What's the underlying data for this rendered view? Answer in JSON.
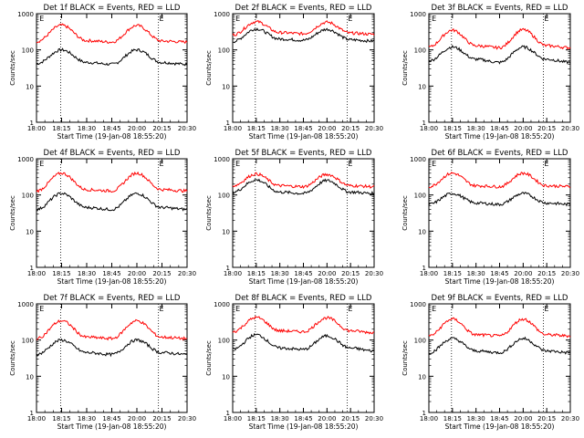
{
  "shared": {
    "ylabel": "Counts/sec",
    "xlabel": "Start Time (19-Jan-08 18:55:20)",
    "x_ticks": [
      "18:00",
      "18:15",
      "18:30",
      "18:45",
      "20:00",
      "20:15",
      "20:30"
    ],
    "y_ticks": [
      "1",
      "10",
      "100",
      "1000"
    ],
    "e_marker": "E",
    "colors": {
      "events": "#000000",
      "lld": "#ff0000",
      "axes": "#000000"
    }
  },
  "chart_data": [
    {
      "type": "line",
      "title": "Det 1f BLACK = Events, RED = LLD",
      "xlabel": "Start Time (19-Jan-08 18:55:20)",
      "ylabel": "Counts/sec",
      "categories": [
        "18:00",
        "18:15",
        "18:30",
        "18:45",
        "20:00",
        "20:15",
        "20:30"
      ],
      "y_scale": "log",
      "ylim": [
        1,
        1000
      ],
      "series": [
        {
          "name": "Events",
          "color": "#000000",
          "values": [
            42,
            100,
            45,
            40,
            100,
            45,
            40
          ]
        },
        {
          "name": "LLD",
          "color": "#ff0000",
          "values": [
            170,
            480,
            180,
            165,
            470,
            175,
            165
          ]
        }
      ]
    },
    {
      "type": "line",
      "title": "Det 2f BLACK = Events, RED = LLD",
      "xlabel": "Start Time (19-Jan-08 18:55:20)",
      "ylabel": "Counts/sec",
      "categories": [
        "18:00",
        "18:15",
        "18:30",
        "18:45",
        "20:00",
        "20:15",
        "20:30"
      ],
      "y_scale": "log",
      "ylim": [
        1,
        1000
      ],
      "series": [
        {
          "name": "Events",
          "color": "#000000",
          "values": [
            170,
            380,
            200,
            185,
            370,
            190,
            175
          ]
        },
        {
          "name": "LLD",
          "color": "#ff0000",
          "values": [
            260,
            600,
            300,
            280,
            580,
            290,
            270
          ]
        }
      ]
    },
    {
      "type": "line",
      "title": "Det 3f BLACK = Events, RED = LLD",
      "xlabel": "Start Time (19-Jan-08 18:55:20)",
      "ylabel": "Counts/sec",
      "categories": [
        "18:00",
        "18:15",
        "18:30",
        "18:45",
        "20:00",
        "20:15",
        "20:30"
      ],
      "y_scale": "log",
      "ylim": [
        1,
        1000
      ],
      "series": [
        {
          "name": "Events",
          "color": "#000000",
          "values": [
            50,
            120,
            55,
            45,
            120,
            55,
            45
          ]
        },
        {
          "name": "LLD",
          "color": "#ff0000",
          "values": [
            120,
            350,
            130,
            115,
            360,
            130,
            115
          ]
        }
      ]
    },
    {
      "type": "line",
      "title": "Det 4f BLACK = Events, RED = LLD",
      "xlabel": "Start Time (19-Jan-08 18:55:20)",
      "ylabel": "Counts/sec",
      "categories": [
        "18:00",
        "18:15",
        "18:30",
        "18:45",
        "20:00",
        "20:15",
        "20:30"
      ],
      "y_scale": "log",
      "ylim": [
        1,
        1000
      ],
      "series": [
        {
          "name": "Events",
          "color": "#000000",
          "values": [
            40,
            110,
            45,
            40,
            110,
            45,
            40
          ]
        },
        {
          "name": "LLD",
          "color": "#ff0000",
          "values": [
            130,
            400,
            140,
            130,
            400,
            140,
            130
          ]
        }
      ]
    },
    {
      "type": "line",
      "title": "Det 5f BLACK = Events, RED = LLD",
      "xlabel": "Start Time (19-Jan-08 18:55:20)",
      "ylabel": "Counts/sec",
      "categories": [
        "18:00",
        "18:15",
        "18:30",
        "18:45",
        "20:00",
        "20:15",
        "20:30"
      ],
      "y_scale": "log",
      "ylim": [
        1,
        1000
      ],
      "series": [
        {
          "name": "Events",
          "color": "#000000",
          "values": [
            120,
            260,
            120,
            110,
            250,
            120,
            110
          ]
        },
        {
          "name": "LLD",
          "color": "#ff0000",
          "values": [
            180,
            380,
            180,
            170,
            370,
            180,
            170
          ]
        }
      ]
    },
    {
      "type": "line",
      "title": "Det 6f BLACK = Events, RED = LLD",
      "xlabel": "Start Time (19-Jan-08 18:55:20)",
      "ylabel": "Counts/sec",
      "categories": [
        "18:00",
        "18:15",
        "18:30",
        "18:45",
        "20:00",
        "20:15",
        "20:30"
      ],
      "y_scale": "log",
      "ylim": [
        1,
        1000
      ],
      "series": [
        {
          "name": "Events",
          "color": "#000000",
          "values": [
            55,
            110,
            60,
            55,
            110,
            60,
            55
          ]
        },
        {
          "name": "LLD",
          "color": "#ff0000",
          "values": [
            170,
            400,
            180,
            170,
            400,
            180,
            170
          ]
        }
      ]
    },
    {
      "type": "line",
      "title": "Det 7f BLACK = Events, RED = LLD",
      "xlabel": "Start Time (19-Jan-08 18:55:20)",
      "ylabel": "Counts/sec",
      "categories": [
        "18:00",
        "18:15",
        "18:30",
        "18:45",
        "20:00",
        "20:15",
        "20:30"
      ],
      "y_scale": "log",
      "ylim": [
        1,
        1000
      ],
      "series": [
        {
          "name": "Events",
          "color": "#000000",
          "values": [
            40,
            100,
            45,
            40,
            100,
            45,
            40
          ]
        },
        {
          "name": "LLD",
          "color": "#ff0000",
          "values": [
            110,
            340,
            120,
            110,
            340,
            120,
            110
          ]
        }
      ]
    },
    {
      "type": "line",
      "title": "Det 8f BLACK = Events, RED = LLD",
      "xlabel": "Start Time (19-Jan-08 18:55:20)",
      "ylabel": "Counts/sec",
      "categories": [
        "18:00",
        "18:15",
        "18:30",
        "18:45",
        "20:00",
        "20:15",
        "20:30"
      ],
      "y_scale": "log",
      "ylim": [
        1,
        1000
      ],
      "series": [
        {
          "name": "Events",
          "color": "#000000",
          "values": [
            55,
            140,
            60,
            55,
            130,
            60,
            50
          ]
        },
        {
          "name": "LLD",
          "color": "#ff0000",
          "values": [
            170,
            420,
            180,
            170,
            410,
            180,
            160
          ]
        }
      ]
    },
    {
      "type": "line",
      "title": "Det 9f BLACK = Events, RED = LLD",
      "xlabel": "Start Time (19-Jan-08 18:55:20)",
      "ylabel": "Counts/sec",
      "categories": [
        "18:00",
        "18:15",
        "18:30",
        "18:45",
        "20:00",
        "20:15",
        "20:30"
      ],
      "y_scale": "log",
      "ylim": [
        1,
        1000
      ],
      "series": [
        {
          "name": "Events",
          "color": "#000000",
          "values": [
            45,
            110,
            50,
            45,
            110,
            50,
            45
          ]
        },
        {
          "name": "LLD",
          "color": "#ff0000",
          "values": [
            130,
            380,
            140,
            130,
            380,
            140,
            130
          ]
        }
      ]
    }
  ]
}
